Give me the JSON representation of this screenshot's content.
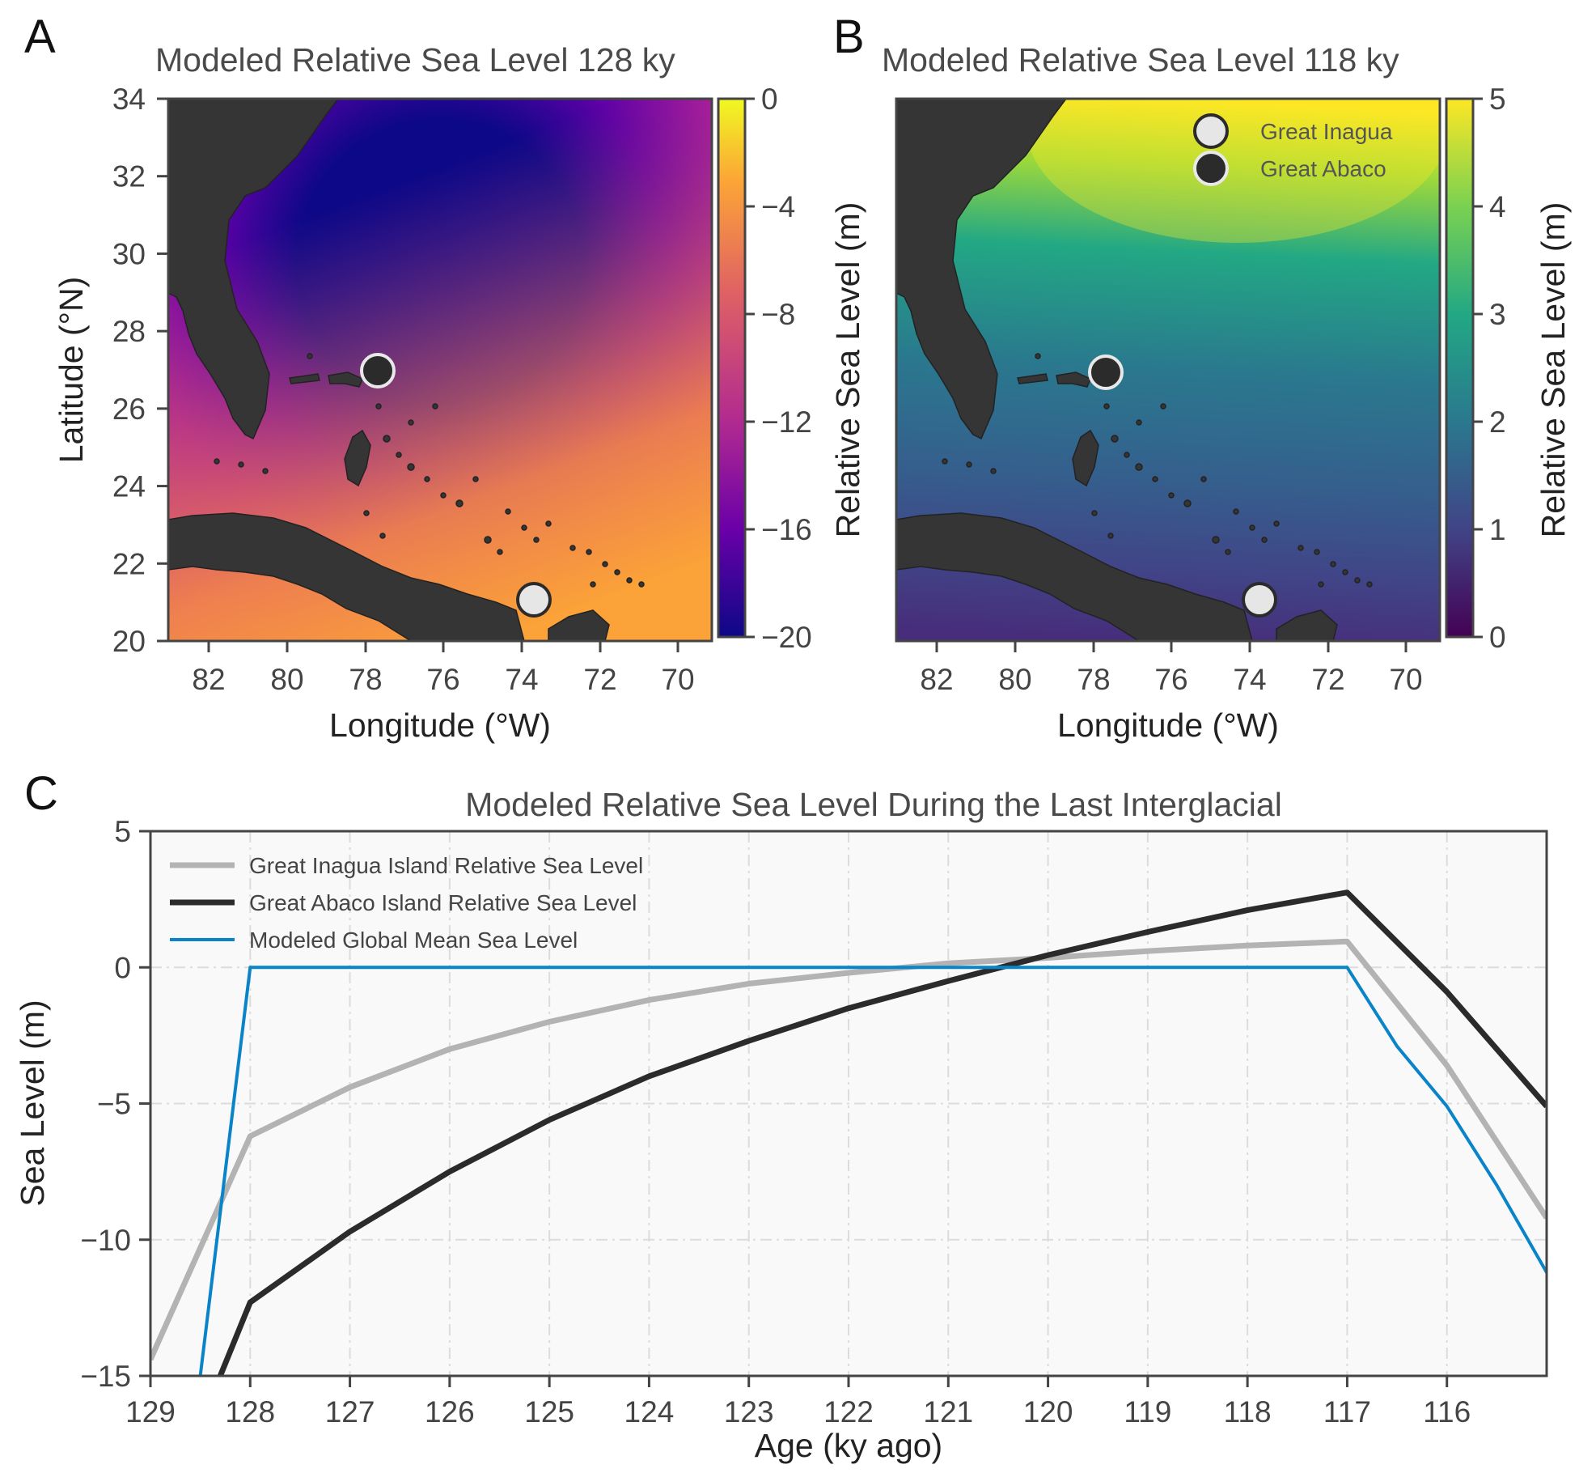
{
  "panels": {
    "a": {
      "letter": "A",
      "title": "Modeled Relative Sea Level 128 ky",
      "xlabel": "Longitude (°W)",
      "ylabel": "Latitude (°N)",
      "x_ticks": [
        "82",
        "80",
        "78",
        "76",
        "74",
        "72",
        "70"
      ],
      "y_ticks": [
        "34",
        "32",
        "30",
        "28",
        "26",
        "24",
        "22",
        "20"
      ],
      "colorbar_ticks": [
        "0",
        "−4",
        "−8",
        "−12",
        "−16",
        "−20"
      ],
      "colormap": "plasma"
    },
    "b": {
      "letter": "B",
      "title": "Modeled Relative Sea Level 118 ky",
      "xlabel": "Longitude (°W)",
      "ylabel": "Relative Sea Level (m)",
      "x_ticks": [
        "82",
        "80",
        "78",
        "76",
        "74",
        "72",
        "70"
      ],
      "colorbar_ticks": [
        "5",
        "4",
        "3",
        "2",
        "1",
        "0"
      ],
      "colorbar_label": "Relative Sea Level (m)",
      "colormap": "viridis",
      "legend": [
        {
          "label": "Great Inagua",
          "color": "#e6e6e6"
        },
        {
          "label": "Great Abaco",
          "color": "#2b2b2b"
        }
      ]
    },
    "c": {
      "letter": "C"
    }
  },
  "chart_data": [
    {
      "type": "heatmap",
      "title": "Modeled Relative Sea Level 128 ky",
      "xlabel": "Longitude (°W)",
      "ylabel": "Latitude (°N)",
      "xlim": [
        83,
        69
      ],
      "ylim": [
        20,
        34
      ],
      "colorbar_range": [
        -20,
        0
      ],
      "colormap": "plasma",
      "field_description_points": [
        {
          "lon": 77,
          "lat": 30.5,
          "value": -20
        },
        {
          "lon": 73,
          "lat": 27,
          "value": -15
        },
        {
          "lon": 81,
          "lat": 29,
          "value": -13
        },
        {
          "lon": 80,
          "lat": 24,
          "value": -8
        },
        {
          "lon": 76,
          "lat": 22,
          "value": -5
        },
        {
          "lon": 70,
          "lat": 20.5,
          "value": -6
        }
      ],
      "sites": [
        {
          "name": "Great Abaco",
          "lon": 77.6,
          "lat": 26.9
        },
        {
          "name": "Great Inagua",
          "lon": 73.6,
          "lat": 21.0
        }
      ]
    },
    {
      "type": "heatmap",
      "title": "Modeled Relative Sea Level 118 ky",
      "xlabel": "Longitude (°W)",
      "ylabel": "Relative Sea Level (m)",
      "xlim": [
        83,
        69
      ],
      "ylim": [
        20,
        34
      ],
      "colorbar_range": [
        0,
        5
      ],
      "colorbar_label": "Relative Sea Level (m)",
      "colormap": "viridis",
      "field_description_points": [
        {
          "lon": 75,
          "lat": 32.8,
          "value": 5
        },
        {
          "lon": 78,
          "lat": 30,
          "value": 3.9
        },
        {
          "lon": 76,
          "lat": 27,
          "value": 2.5
        },
        {
          "lon": 80,
          "lat": 24,
          "value": 1.5
        },
        {
          "lon": 77,
          "lat": 21,
          "value": 0.6
        }
      ],
      "legend": [
        "Great Inagua",
        "Great Abaco"
      ],
      "sites": [
        {
          "name": "Great Abaco",
          "lon": 77.6,
          "lat": 26.9
        },
        {
          "name": "Great Inagua",
          "lon": 73.6,
          "lat": 21.0
        }
      ]
    },
    {
      "type": "line",
      "title": "Modeled Relative Sea Level During the Last Interglacial",
      "xlabel": "Age (ky ago)",
      "ylabel": "Sea Level (m)",
      "xlim": [
        129,
        115
      ],
      "ylim": [
        -15,
        5
      ],
      "x_ticks": [
        "129",
        "128",
        "127",
        "126",
        "125",
        "124",
        "123",
        "122",
        "121",
        "120",
        "119",
        "118",
        "117",
        "116"
      ],
      "y_ticks": [
        "5",
        "0",
        "−5",
        "−10",
        "−15"
      ],
      "grid": true,
      "legend_position": "top-left",
      "series": [
        {
          "name": "Great Inagua Island Relative Sea Level",
          "color": "#b3b3b3",
          "width": 7,
          "x": [
            129,
            128,
            127,
            126,
            125,
            124,
            123,
            122,
            121,
            120,
            119,
            118,
            117,
            116,
            115
          ],
          "y": [
            -14.4,
            -6.2,
            -4.4,
            -3.0,
            -2.0,
            -1.2,
            -0.6,
            -0.2,
            0.15,
            0.35,
            0.6,
            0.8,
            0.95,
            -3.6,
            -9.2
          ]
        },
        {
          "name": "Great Abaco Island Relative Sea Level",
          "color": "#2b2b2b",
          "width": 7,
          "x": [
            128.3,
            128,
            127,
            126,
            125,
            124,
            123,
            122,
            121,
            120,
            119,
            118,
            117,
            116,
            115
          ],
          "y": [
            -15,
            -12.3,
            -9.7,
            -7.5,
            -5.6,
            -4.0,
            -2.7,
            -1.5,
            -0.5,
            0.45,
            1.3,
            2.1,
            2.75,
            -0.9,
            -5.1
          ]
        },
        {
          "name": "Modeled Global Mean Sea Level",
          "color": "#0a84c8",
          "width": 4,
          "x": [
            128.5,
            128,
            127,
            126,
            125,
            124,
            123,
            122,
            121,
            120,
            119,
            118,
            117,
            116.5,
            116,
            115.5,
            115
          ],
          "y": [
            -15,
            0,
            0,
            0,
            0,
            0,
            0,
            0,
            0,
            0,
            0,
            0,
            0,
            -2.9,
            -5.1,
            -8.0,
            -11.2
          ]
        }
      ]
    }
  ]
}
